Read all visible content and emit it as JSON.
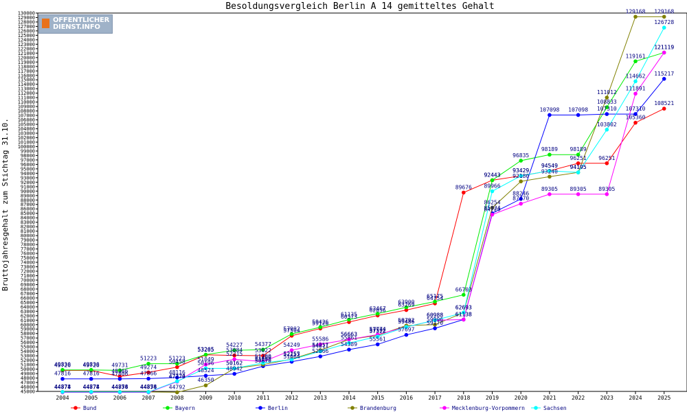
{
  "logo": {
    "line1": "OFFENTLICHER",
    "line2": "DIENST.INFO"
  },
  "chart_data": {
    "type": "line",
    "title": "Besoldungsvergleich Berlin A 14 gemitteltes Gehalt",
    "ylabel": "Bruttojahresgehalt zum Stichtag 31.10.",
    "xlabel": "",
    "ylim": [
      45000,
      130000
    ],
    "ytick_step": 1000,
    "grid": false,
    "legend_position": "bottom",
    "x": [
      "2004",
      "2005",
      "2006",
      "2007",
      "2008",
      "2009",
      "2010",
      "2011",
      "2012",
      "2013",
      "2014",
      "2015",
      "2016",
      "2017",
      "2018",
      "2019",
      "2020",
      "2021",
      "2022",
      "2023",
      "2024",
      "2025"
    ],
    "series": [
      {
        "name": "Bund",
        "color": "#ff0000",
        "values": [
          49726,
          49726,
          48366,
          49274,
          50458,
          53205,
          53084,
          53022,
          57504,
          59126,
          60573,
          62056,
          63269,
          64754,
          89676,
          92443,
          93429,
          94549,
          96251,
          96251,
          105360,
          108521
        ]
      },
      {
        "name": "Bayern",
        "color": "#00ee00",
        "values": [
          49830,
          49830,
          49731,
          51223,
          51223,
          53265,
          54227,
          54377,
          57902,
          59426,
          61135,
          62467,
          63900,
          65175,
          66703,
          92443,
          96835,
          98189,
          98189,
          108833,
          119161,
          121119
        ]
      },
      {
        "name": "Berlin",
        "color": "#0000ff",
        "values": [
          47816,
          47816,
          47806,
          47866,
          48116,
          48524,
          48942,
          50670,
          51664,
          52866,
          54389,
          55561,
          57697,
          59170,
          61138,
          85024,
          88246,
          107098,
          107098,
          107310,
          107310,
          115217
        ]
      },
      {
        "name": "Brandenburg",
        "color": "#808000",
        "values": [
          44878,
          44878,
          44878,
          44878,
          44792,
          46350,
          50162,
          51008,
          52255,
          54257,
          56663,
          57592,
          59792,
          59996,
          62693,
          86254,
          92180,
          93240,
          94195,
          111012,
          129168,
          129168
        ]
      },
      {
        "name": "Mecklenburg-Vorpommern",
        "color": "#ff00ff",
        "values": [
          44774,
          44774,
          44774,
          44774,
          47170,
          51049,
          52215,
          51700,
          54249,
          55586,
          56663,
          57774,
          59486,
          60988,
          61138,
          84720,
          87170,
          89305,
          89305,
          89305,
          111891,
          121119
        ]
      },
      {
        "name": "Sachsen",
        "color": "#00ffff",
        "values": [
          44874,
          44874,
          44856,
          44856,
          47274,
          50196,
          50162,
          51400,
          52157,
          54011,
          55861,
          57322,
          59486,
          60988,
          62693,
          89966,
          93429,
          94549,
          94195,
          103802,
          114662,
          126728
        ]
      }
    ]
  }
}
